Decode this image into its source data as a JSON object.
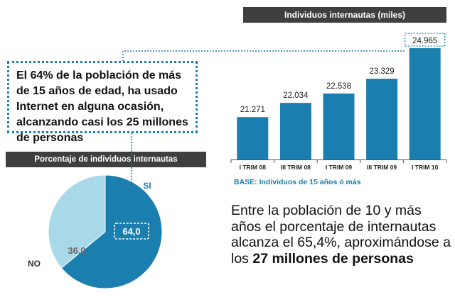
{
  "callout": {
    "text": "El 64% de la población de más de 15 años de edad, ha usado Internet en alguna ocasión, alcanzando casi los 25 millones de personas"
  },
  "summary": {
    "text_plain": "Entre la población de 10 y más años el porcentaje de internautas alcanza el 65,4%, aproximándose a los ",
    "text_bold": "27 millones de personas"
  },
  "base_note": "BASE:  Individuos de 15 años ó más",
  "colors": {
    "bar": "#1a7fae",
    "pie_si": "#1a7fae",
    "pie_no": "#a9d9e8",
    "dark_bar": "#3f3f3f",
    "dotted": "#1a7fae"
  },
  "chart_data": [
    {
      "type": "bar",
      "title": "Individuos internautas (miles)",
      "categories": [
        "I TRIM 08",
        "III TRIM 08",
        "I TRIM 09",
        "III TRIM 09",
        "I TRIM 10"
      ],
      "values": [
        21271,
        22034,
        22538,
        23329,
        24965
      ],
      "value_labels": [
        "21.271",
        "22.034",
        "22.538",
        "23.329",
        "24.965"
      ],
      "highlighted": "24.965"
    },
    {
      "type": "pie",
      "title": "Porcentaje de individuos internautas",
      "slices": [
        {
          "label": "SI",
          "value": 64.0,
          "value_label": "64,0"
        },
        {
          "label": "NO",
          "value": 36.0,
          "value_label": "36,0"
        }
      ]
    }
  ]
}
